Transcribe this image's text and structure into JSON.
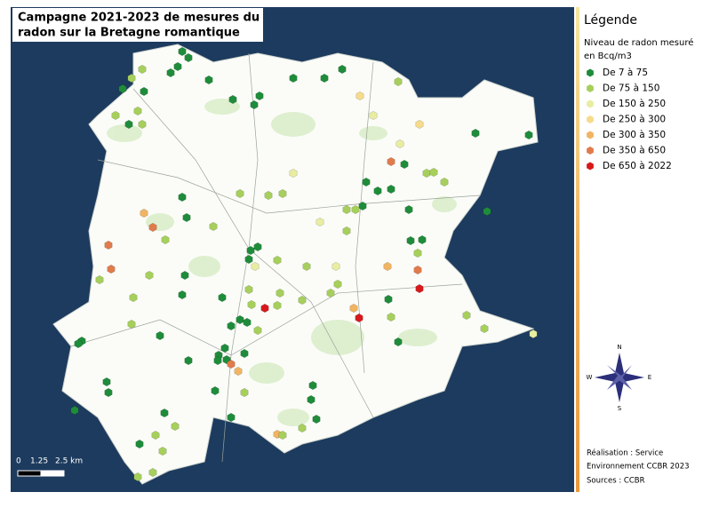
{
  "title": [
    "Campagne 2021-2023 de mesures du",
    "radon sur la Bretagne romantique"
  ],
  "legend": {
    "heading": "Légende",
    "subtitle": [
      "Niveau de radon mesuré",
      "en Bcq/m3"
    ],
    "items": [
      {
        "label": "De 7 à 75",
        "color": "#1e8c3a"
      },
      {
        "label": "De 75 à 150",
        "color": "#a6cf5b"
      },
      {
        "label": "De 150 à 250",
        "color": "#e8eda2"
      },
      {
        "label": "De 250 à 300",
        "color": "#f6db8c"
      },
      {
        "label": "De 300 à 350",
        "color": "#f0b463"
      },
      {
        "label": "De 350 à 650",
        "color": "#e07b4c"
      },
      {
        "label": "De 650 à 2022",
        "color": "#d7191c"
      }
    ]
  },
  "compass": {
    "north": "N",
    "south": "S",
    "east": "E",
    "west": "W"
  },
  "scale_bar": {
    "labels": [
      "0",
      "1.25",
      "2.5 km"
    ]
  },
  "credits": [
    "Réalisation : Service",
    "Environnement CCBR 2023",
    "Sources : CCBR"
  ]
}
